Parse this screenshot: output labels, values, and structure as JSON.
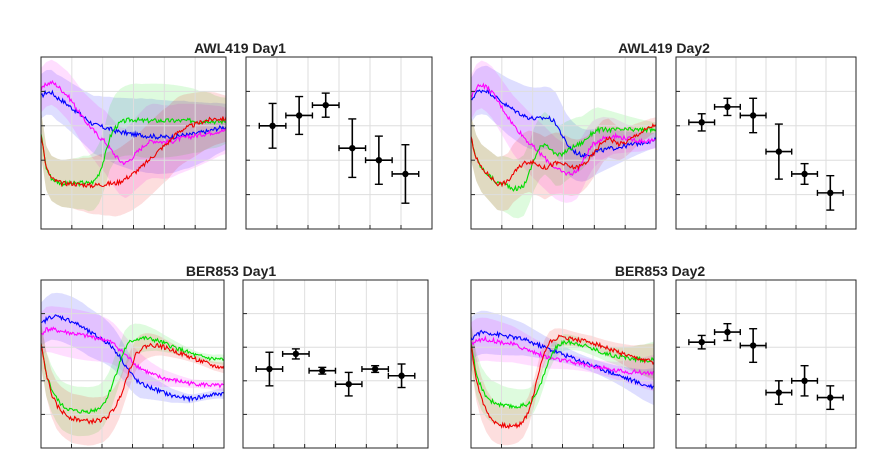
{
  "chart_data": [
    {
      "type": "line",
      "title": "AWL419 Day1",
      "traces": [
        {
          "color": "#0000ff",
          "y": [
            0.46,
            0.5,
            0.5,
            0.45,
            0.42,
            0.38,
            0.34,
            0.3,
            0.26,
            0.22,
            0.18,
            0.17,
            0.15,
            0.14,
            0.12,
            0.11,
            0.1,
            0.09,
            0.08,
            0.08,
            0.07,
            0.07,
            0.06,
            0.06,
            0.06,
            0.06,
            0.07,
            0.08,
            0.08,
            0.09,
            0.1,
            0.11,
            0.12,
            0.14,
            0.15,
            0.16
          ]
        },
        {
          "color": "#ff00ff",
          "y": [
            0.52,
            0.58,
            0.6,
            0.57,
            0.52,
            0.47,
            0.4,
            0.32,
            0.24,
            0.18,
            0.12,
            0.06,
            0.02,
            -0.05,
            -0.12,
            -0.18,
            -0.2,
            -0.16,
            -0.1,
            -0.05,
            0.0,
            0.02,
            0.02,
            0.01,
            0.01,
            0.02,
            0.04,
            0.05,
            0.06,
            0.07,
            0.08,
            0.09,
            0.1,
            0.11,
            0.12,
            0.12
          ]
        },
        {
          "color": "#00dd00",
          "y": [
            0.1,
            -0.25,
            -0.35,
            -0.38,
            -0.4,
            -0.4,
            -0.4,
            -0.4,
            -0.39,
            -0.4,
            -0.38,
            -0.3,
            -0.15,
            0.05,
            0.15,
            0.2,
            0.22,
            0.23,
            0.23,
            0.22,
            0.22,
            0.22,
            0.22,
            0.22,
            0.22,
            0.22,
            0.22,
            0.22,
            0.22,
            0.22,
            0.21,
            0.22,
            0.22,
            0.21,
            0.21,
            0.22
          ]
        },
        {
          "color": "#ee0000",
          "y": [
            0.1,
            -0.25,
            -0.35,
            -0.38,
            -0.4,
            -0.4,
            -0.4,
            -0.41,
            -0.41,
            -0.42,
            -0.42,
            -0.41,
            -0.41,
            -0.4,
            -0.4,
            -0.38,
            -0.35,
            -0.32,
            -0.28,
            -0.24,
            -0.19,
            -0.14,
            -0.09,
            -0.04,
            0.0,
            0.06,
            0.11,
            0.14,
            0.16,
            0.18,
            0.2,
            0.22,
            0.23,
            0.24,
            0.24,
            0.24
          ]
        }
      ],
      "error_points": [
        {
          "x": 1,
          "y": 0.6,
          "xerr": 0.5,
          "yerr": 0.13
        },
        {
          "x": 2,
          "y": 0.66,
          "xerr": 0.5,
          "yerr": 0.11
        },
        {
          "x": 3,
          "y": 0.72,
          "xerr": 0.5,
          "yerr": 0.07
        },
        {
          "x": 4,
          "y": 0.47,
          "xerr": 0.5,
          "yerr": 0.17
        },
        {
          "x": 5,
          "y": 0.4,
          "xerr": 0.5,
          "yerr": 0.14
        },
        {
          "x": 6,
          "y": 0.32,
          "xerr": 0.5,
          "yerr": 0.17
        }
      ]
    },
    {
      "type": "line",
      "title": "AWL419 Day2",
      "traces": [
        {
          "color": "#0000ff",
          "y": [
            0.42,
            0.5,
            0.52,
            0.52,
            0.48,
            0.44,
            0.4,
            0.36,
            0.33,
            0.3,
            0.27,
            0.25,
            0.24,
            0.24,
            0.25,
            0.24,
            0.2,
            0.1,
            0.0,
            -0.06,
            -0.1,
            -0.12,
            -0.12,
            -0.1,
            -0.08,
            -0.07,
            -0.06,
            -0.05,
            -0.04,
            -0.03,
            -0.02,
            -0.01,
            0.0,
            0.01,
            0.02,
            0.03
          ]
        },
        {
          "color": "#ff00ff",
          "y": [
            0.45,
            0.55,
            0.58,
            0.55,
            0.5,
            0.42,
            0.34,
            0.26,
            0.18,
            0.12,
            0.06,
            0.0,
            -0.05,
            -0.1,
            -0.15,
            -0.2,
            -0.25,
            -0.28,
            -0.3,
            -0.3,
            -0.28,
            -0.2,
            -0.1,
            -0.02,
            0.02,
            0.05,
            0.06,
            0.07,
            0.06,
            0.05,
            0.04,
            0.03,
            0.02,
            0.02,
            0.02,
            0.02
          ]
        },
        {
          "color": "#00dd00",
          "y": [
            0.05,
            -0.15,
            -0.25,
            -0.3,
            -0.35,
            -0.4,
            -0.4,
            -0.42,
            -0.45,
            -0.45,
            -0.42,
            -0.3,
            -0.15,
            -0.05,
            0.0,
            -0.05,
            -0.12,
            -0.12,
            -0.08,
            -0.05,
            -0.02,
            0.0,
            0.05,
            0.1,
            0.13,
            0.13,
            0.13,
            0.13,
            0.13,
            0.13,
            0.13,
            0.13,
            0.13,
            0.13,
            0.13,
            0.13
          ]
        },
        {
          "color": "#ee0000",
          "y": [
            0.05,
            -0.15,
            -0.25,
            -0.3,
            -0.35,
            -0.4,
            -0.4,
            -0.38,
            -0.3,
            -0.25,
            -0.2,
            -0.18,
            -0.2,
            -0.22,
            -0.25,
            -0.22,
            -0.2,
            -0.2,
            -0.22,
            -0.24,
            -0.24,
            -0.22,
            -0.18,
            -0.12,
            -0.05,
            0.02,
            0.05,
            0.02,
            -0.01,
            0.0,
            0.03,
            0.07,
            0.1,
            0.13,
            0.16,
            0.18
          ]
        }
      ],
      "error_points": [
        {
          "x": 1,
          "y": 0.62,
          "xerr": 0.5,
          "yerr": 0.05
        },
        {
          "x": 2,
          "y": 0.71,
          "xerr": 0.5,
          "yerr": 0.05
        },
        {
          "x": 3,
          "y": 0.66,
          "xerr": 0.5,
          "yerr": 0.1
        },
        {
          "x": 4,
          "y": 0.45,
          "xerr": 0.5,
          "yerr": 0.16
        },
        {
          "x": 5,
          "y": 0.32,
          "xerr": 0.5,
          "yerr": 0.06
        },
        {
          "x": 6,
          "y": 0.21,
          "xerr": 0.5,
          "yerr": 0.1
        }
      ]
    },
    {
      "type": "line",
      "title": "BER853 Day1",
      "traces": [
        {
          "color": "#0000ff",
          "y": [
            0.4,
            0.45,
            0.48,
            0.48,
            0.47,
            0.45,
            0.43,
            0.4,
            0.37,
            0.33,
            0.3,
            0.27,
            0.24,
            0.2,
            0.15,
            0.08,
            0.0,
            -0.08,
            -0.15,
            -0.2,
            -0.22,
            -0.24,
            -0.26,
            -0.28,
            -0.3,
            -0.32,
            -0.33,
            -0.34,
            -0.35,
            -0.35,
            -0.34,
            -0.33,
            -0.32,
            -0.31,
            -0.3,
            -0.3
          ]
        },
        {
          "color": "#ff00ff",
          "y": [
            0.3,
            0.35,
            0.35,
            0.34,
            0.33,
            0.32,
            0.31,
            0.3,
            0.29,
            0.28,
            0.27,
            0.26,
            0.25,
            0.23,
            0.2,
            0.15,
            0.1,
            0.05,
            0.0,
            -0.04,
            -0.07,
            -0.1,
            -0.12,
            -0.14,
            -0.15,
            -0.16,
            -0.17,
            -0.18,
            -0.19,
            -0.2,
            -0.2,
            -0.21,
            -0.21,
            -0.22,
            -0.22,
            -0.22
          ]
        },
        {
          "color": "#00dd00",
          "y": [
            0.2,
            -0.1,
            -0.25,
            -0.35,
            -0.42,
            -0.45,
            -0.47,
            -0.48,
            -0.48,
            -0.48,
            -0.47,
            -0.45,
            -0.4,
            -0.3,
            -0.15,
            0.0,
            0.15,
            0.22,
            0.25,
            0.26,
            0.26,
            0.25,
            0.24,
            0.22,
            0.2,
            0.18,
            0.16,
            0.14,
            0.12,
            0.1,
            0.08,
            0.07,
            0.06,
            0.05,
            0.05,
            0.04
          ]
        },
        {
          "color": "#ee0000",
          "y": [
            0.2,
            -0.1,
            -0.3,
            -0.42,
            -0.48,
            -0.52,
            -0.55,
            -0.56,
            -0.57,
            -0.58,
            -0.58,
            -0.57,
            -0.56,
            -0.52,
            -0.45,
            -0.35,
            -0.2,
            -0.05,
            0.08,
            0.15,
            0.18,
            0.19,
            0.19,
            0.18,
            0.16,
            0.14,
            0.12,
            0.1,
            0.08,
            0.06,
            0.04,
            0.02,
            0.0,
            -0.02,
            -0.03,
            -0.04
          ]
        }
      ],
      "error_points": [
        {
          "x": 1,
          "y": 0.47,
          "xerr": 0.5,
          "yerr": 0.1
        },
        {
          "x": 2,
          "y": 0.56,
          "xerr": 0.5,
          "yerr": 0.03
        },
        {
          "x": 3,
          "y": 0.46,
          "xerr": 0.5,
          "yerr": 0.02
        },
        {
          "x": 4,
          "y": 0.38,
          "xerr": 0.5,
          "yerr": 0.07
        },
        {
          "x": 5,
          "y": 0.47,
          "xerr": 0.5,
          "yerr": 0.02
        },
        {
          "x": 6,
          "y": 0.43,
          "xerr": 0.5,
          "yerr": 0.07
        }
      ]
    },
    {
      "type": "line",
      "title": "BER853 Day2",
      "traces": [
        {
          "color": "#0000ff",
          "y": [
            0.25,
            0.3,
            0.32,
            0.32,
            0.31,
            0.3,
            0.29,
            0.28,
            0.27,
            0.26,
            0.25,
            0.23,
            0.21,
            0.19,
            0.17,
            0.15,
            0.13,
            0.11,
            0.09,
            0.07,
            0.05,
            0.03,
            0.01,
            -0.01,
            -0.03,
            -0.05,
            -0.07,
            -0.09,
            -0.11,
            -0.13,
            -0.15,
            -0.17,
            -0.19,
            -0.21,
            -0.22,
            -0.23
          ]
        },
        {
          "color": "#ff00ff",
          "y": [
            0.2,
            0.24,
            0.25,
            0.25,
            0.24,
            0.23,
            0.22,
            0.21,
            0.2,
            0.18,
            0.16,
            0.14,
            0.12,
            0.1,
            0.08,
            0.06,
            0.05,
            0.04,
            0.03,
            0.02,
            0.01,
            0.0,
            -0.01,
            -0.02,
            -0.03,
            -0.04,
            -0.05,
            -0.06,
            -0.07,
            -0.07,
            -0.08,
            -0.08,
            -0.08,
            -0.09,
            -0.09,
            -0.09
          ]
        },
        {
          "color": "#00dd00",
          "y": [
            0.2,
            -0.1,
            -0.25,
            -0.33,
            -0.38,
            -0.4,
            -0.42,
            -0.43,
            -0.43,
            -0.43,
            -0.42,
            -0.4,
            -0.35,
            -0.25,
            -0.1,
            0.05,
            0.15,
            0.2,
            0.22,
            0.22,
            0.21,
            0.2,
            0.18,
            0.16,
            0.14,
            0.12,
            0.1,
            0.09,
            0.08,
            0.07,
            0.06,
            0.05,
            0.05,
            0.04,
            0.04,
            0.04
          ]
        },
        {
          "color": "#ee0000",
          "y": [
            0.2,
            -0.15,
            -0.35,
            -0.48,
            -0.56,
            -0.6,
            -0.62,
            -0.63,
            -0.63,
            -0.62,
            -0.58,
            -0.48,
            -0.3,
            -0.08,
            0.12,
            0.22,
            0.26,
            0.27,
            0.27,
            0.26,
            0.25,
            0.24,
            0.23,
            0.22,
            0.2,
            0.18,
            0.16,
            0.14,
            0.12,
            0.1,
            0.08,
            0.06,
            0.05,
            0.04,
            0.03,
            0.02
          ]
        }
      ],
      "error_points": [
        {
          "x": 1,
          "y": 0.63,
          "xerr": 0.5,
          "yerr": 0.04
        },
        {
          "x": 2,
          "y": 0.69,
          "xerr": 0.5,
          "yerr": 0.05
        },
        {
          "x": 3,
          "y": 0.61,
          "xerr": 0.5,
          "yerr": 0.1
        },
        {
          "x": 4,
          "y": 0.33,
          "xerr": 0.5,
          "yerr": 0.07
        },
        {
          "x": 5,
          "y": 0.4,
          "xerr": 0.5,
          "yerr": 0.09
        },
        {
          "x": 6,
          "y": 0.3,
          "xerr": 0.5,
          "yerr": 0.07
        }
      ]
    }
  ]
}
